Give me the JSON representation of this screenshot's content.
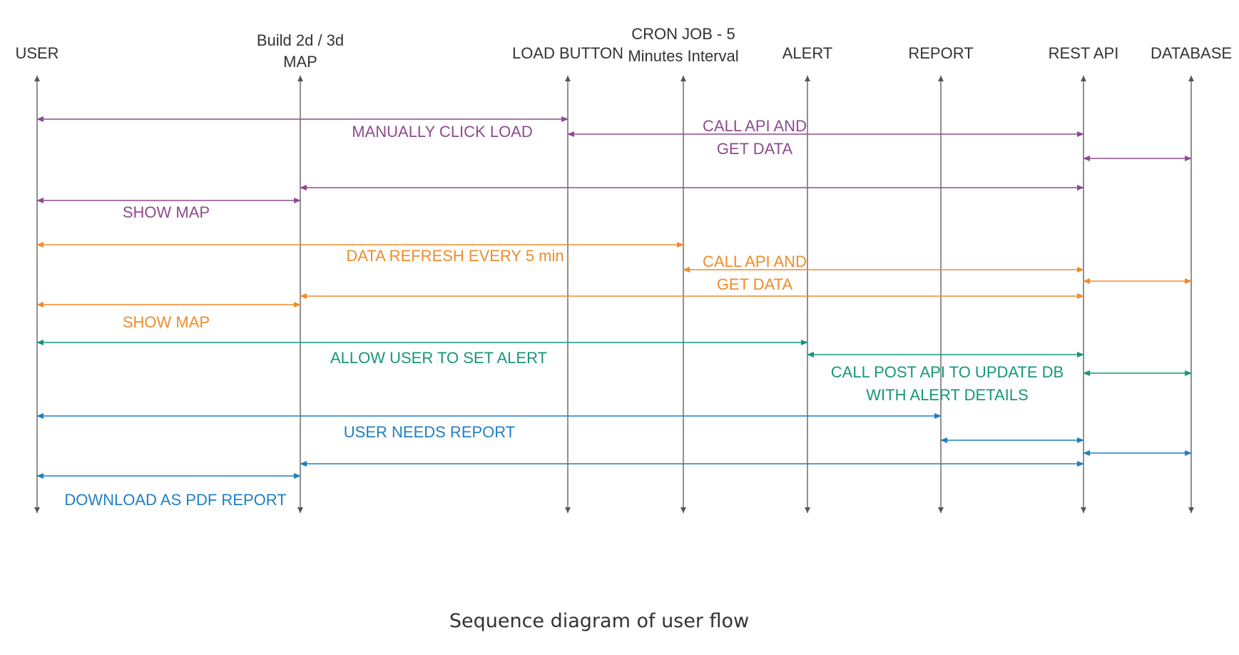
{
  "actors": [
    {
      "id": "user",
      "lines": [
        "USER"
      ]
    },
    {
      "id": "map",
      "lines": [
        "Build 2d / 3d",
        "MAP"
      ]
    },
    {
      "id": "load",
      "lines": [
        "LOAD BUTTON"
      ]
    },
    {
      "id": "cron",
      "lines": [
        "CRON JOB - 5",
        "Minutes Interval"
      ]
    },
    {
      "id": "alert",
      "lines": [
        "ALERT"
      ]
    },
    {
      "id": "report",
      "lines": [
        "REPORT"
      ]
    },
    {
      "id": "api",
      "lines": [
        "REST API"
      ]
    },
    {
      "id": "db",
      "lines": [
        "DATABASE"
      ]
    }
  ],
  "colors": {
    "purple": "#8e4b8f",
    "orange": "#ee8c2c",
    "green": "#17967a",
    "blue": "#1f7fc3",
    "lifeline": "#555555",
    "text": "#333333"
  },
  "messages": [
    {
      "from": "user",
      "to": "load",
      "color": "purple",
      "label": [
        "MANUALLY CLICK LOAD"
      ]
    },
    {
      "from": "load",
      "to": "api",
      "color": "purple",
      "label": [
        "CALL API AND",
        "GET DATA"
      ]
    },
    {
      "from": "api",
      "to": "db",
      "color": "purple",
      "label": []
    },
    {
      "from": "api",
      "to": "map",
      "color": "purple",
      "label": []
    },
    {
      "from": "user",
      "to": "map",
      "color": "purple",
      "label": [
        "SHOW MAP"
      ]
    },
    {
      "from": "user",
      "to": "cron",
      "color": "orange",
      "label": [
        "DATA REFRESH EVERY 5 min"
      ]
    },
    {
      "from": "cron",
      "to": "api",
      "color": "orange",
      "label": [
        "CALL API AND",
        "GET DATA"
      ]
    },
    {
      "from": "api",
      "to": "db",
      "color": "orange",
      "label": []
    },
    {
      "from": "api",
      "to": "map",
      "color": "orange",
      "label": []
    },
    {
      "from": "map",
      "to": "user",
      "color": "orange",
      "label": [
        "SHOW MAP"
      ]
    },
    {
      "from": "user",
      "to": "alert",
      "color": "green",
      "label": [
        "ALLOW USER TO SET ALERT"
      ]
    },
    {
      "from": "alert",
      "to": "api",
      "color": "green",
      "label": [
        "CALL POST API TO UPDATE DB",
        "WITH ALERT DETAILS"
      ]
    },
    {
      "from": "api",
      "to": "db",
      "color": "green",
      "label": []
    },
    {
      "from": "user",
      "to": "report",
      "color": "blue",
      "label": [
        "USER NEEDS REPORT"
      ]
    },
    {
      "from": "report",
      "to": "api",
      "color": "blue",
      "label": []
    },
    {
      "from": "api",
      "to": "db",
      "color": "blue",
      "label": []
    },
    {
      "from": "api",
      "to": "map",
      "color": "blue",
      "label": []
    },
    {
      "from": "user",
      "to": "map",
      "color": "blue",
      "label": [
        "DOWNLOAD AS PDF REPORT"
      ]
    }
  ],
  "caption": "Sequence diagram of user flow"
}
